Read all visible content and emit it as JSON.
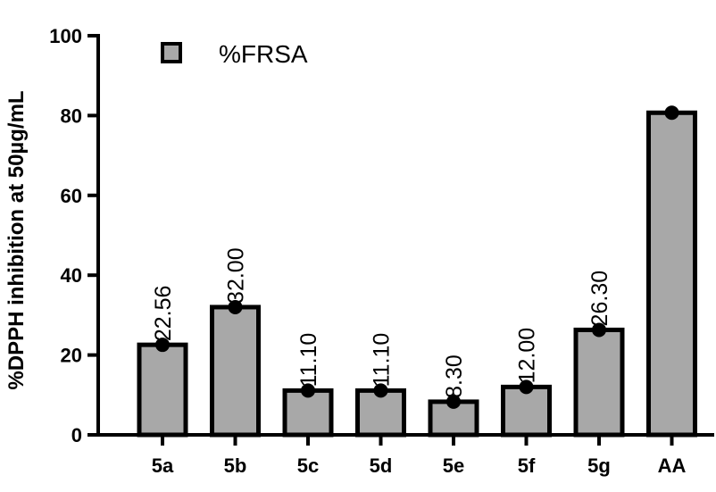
{
  "chart_data": {
    "type": "bar",
    "categories": [
      "5a",
      "5b",
      "5c",
      "5d",
      "5e",
      "5f",
      "5g",
      "AA"
    ],
    "series": [
      {
        "name": "%FRSA",
        "values": [
          22.56,
          32.0,
          11.1,
          11.1,
          8.3,
          12.0,
          26.3,
          80.7
        ]
      }
    ],
    "data_labels": [
      "22.56",
      "32.00",
      "11.10",
      "11.10",
      "8.30",
      "12.00",
      "26.30",
      ""
    ],
    "ylabel": "%DPPH inhibition at 50µg/mL",
    "xlabel": "",
    "ylim": [
      0,
      100
    ],
    "yticks": [
      0,
      20,
      40,
      60,
      80,
      100
    ],
    "grid": false,
    "legend_position": "top-left",
    "colors": {
      "bar_fill": "#a8a8a8",
      "bar_stroke": "#000000",
      "point": "#000000"
    }
  }
}
